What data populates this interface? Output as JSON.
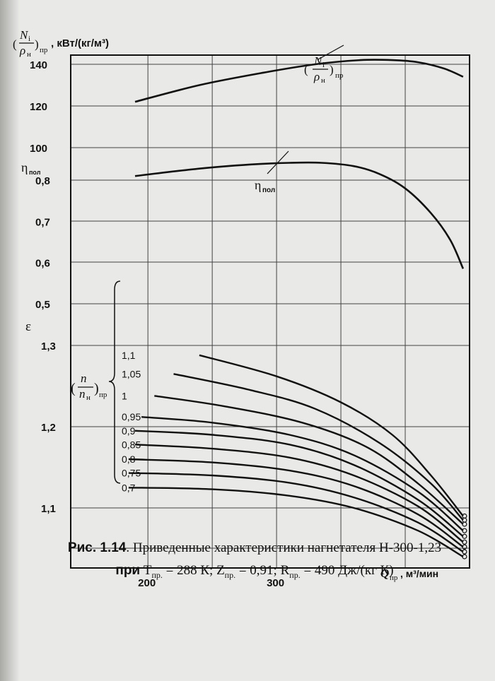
{
  "caption": {
    "fig_label": "Рис. 1.14",
    "line1": ". Приведенные характеристики нагнетателя Н-300-1,23",
    "line2_prefix": "при",
    "T_sym": "T",
    "T_sub": "пр.",
    "T_val": " = 288  К;",
    "Z_sym": "Z",
    "Z_sub": "пр.",
    "Z_val": " = 0,91;",
    "R_sym": "R",
    "R_sub": "пр.",
    "R_val": " = 490  Дж/(кг К)"
  },
  "chart_data": {
    "type": "line",
    "title": "",
    "xlabel": "Q",
    "xlabel_sub": "пр",
    "xlabel_unit": ", м³/мин",
    "xlim": [
      140,
      450
    ],
    "x_ticks": [
      "200",
      "300"
    ],
    "power_axis": {
      "label_num": "N",
      "label_num_sub": "i",
      "label_den": "ρ",
      "label_den_sub": "н",
      "label_sub": "пр",
      "unit": ", кВт/(кг/м³)",
      "ticks": [
        "140",
        "120",
        "100"
      ],
      "range": [
        80,
        140
      ]
    },
    "efficiency_axis": {
      "label": "η",
      "label_sub": "пол",
      "ticks": [
        "0,8",
        "0,7",
        "0,6",
        "0,5"
      ],
      "range": [
        0.5,
        0.85
      ]
    },
    "pressure_axis": {
      "label": "ε",
      "ticks": [
        "1,3",
        "1,2",
        "1,1"
      ],
      "range": [
        1.05,
        1.33
      ]
    },
    "speed_label": {
      "num": "n",
      "den": "n",
      "den_sub": "н",
      "sub": "пр"
    },
    "power_curve": {
      "label_num": "N",
      "label_num_sub": "i",
      "label_den": "ρ",
      "label_den_sub": "н",
      "label_sub": "пр",
      "x": [
        190,
        240,
        290,
        330,
        365,
        390,
        410,
        430,
        445
      ],
      "y": [
        122,
        130,
        136,
        140,
        142,
        142,
        141,
        138,
        134
      ]
    },
    "efficiency_curve": {
      "label": "η",
      "label_sub": "пол",
      "x": [
        190,
        240,
        280,
        310,
        335,
        360,
        380,
        400,
        420,
        435,
        445
      ],
      "y": [
        0.81,
        0.828,
        0.838,
        0.842,
        0.842,
        0.834,
        0.815,
        0.78,
        0.72,
        0.655,
        0.585
      ]
    },
    "series": [
      {
        "name": "1,1",
        "x": [
          240,
          300,
          350,
          390,
          420,
          445
        ],
        "y": [
          1.288,
          1.262,
          1.23,
          1.19,
          1.14,
          1.09
        ]
      },
      {
        "name": "1,05",
        "x": [
          220,
          280,
          330,
          380,
          420,
          445
        ],
        "y": [
          1.265,
          1.245,
          1.222,
          1.18,
          1.13,
          1.085
        ]
      },
      {
        "name": "1",
        "x": [
          205,
          260,
          320,
          370,
          410,
          445
        ],
        "y": [
          1.238,
          1.225,
          1.205,
          1.175,
          1.13,
          1.08
        ]
      },
      {
        "name": "0,95",
        "x": [
          195,
          250,
          310,
          360,
          410,
          445
        ],
        "y": [
          1.212,
          1.205,
          1.19,
          1.165,
          1.12,
          1.072
        ]
      },
      {
        "name": "0,9",
        "x": [
          190,
          250,
          310,
          360,
          410,
          445
        ],
        "y": [
          1.195,
          1.19,
          1.178,
          1.153,
          1.11,
          1.065
        ]
      },
      {
        "name": "0,85",
        "x": [
          190,
          250,
          310,
          360,
          410,
          445
        ],
        "y": [
          1.178,
          1.173,
          1.162,
          1.14,
          1.102,
          1.058
        ]
      },
      {
        "name": "0,8",
        "x": [
          185,
          250,
          310,
          360,
          410,
          445
        ],
        "y": [
          1.16,
          1.156,
          1.146,
          1.127,
          1.092,
          1.052
        ]
      },
      {
        "name": "0,75",
        "x": [
          185,
          250,
          310,
          360,
          410,
          445
        ],
        "y": [
          1.143,
          1.14,
          1.131,
          1.113,
          1.082,
          1.046
        ]
      },
      {
        "name": "0,7",
        "x": [
          185,
          250,
          310,
          360,
          410,
          445
        ],
        "y": [
          1.125,
          1.123,
          1.115,
          1.1,
          1.072,
          1.04
        ]
      }
    ],
    "grid": true
  }
}
